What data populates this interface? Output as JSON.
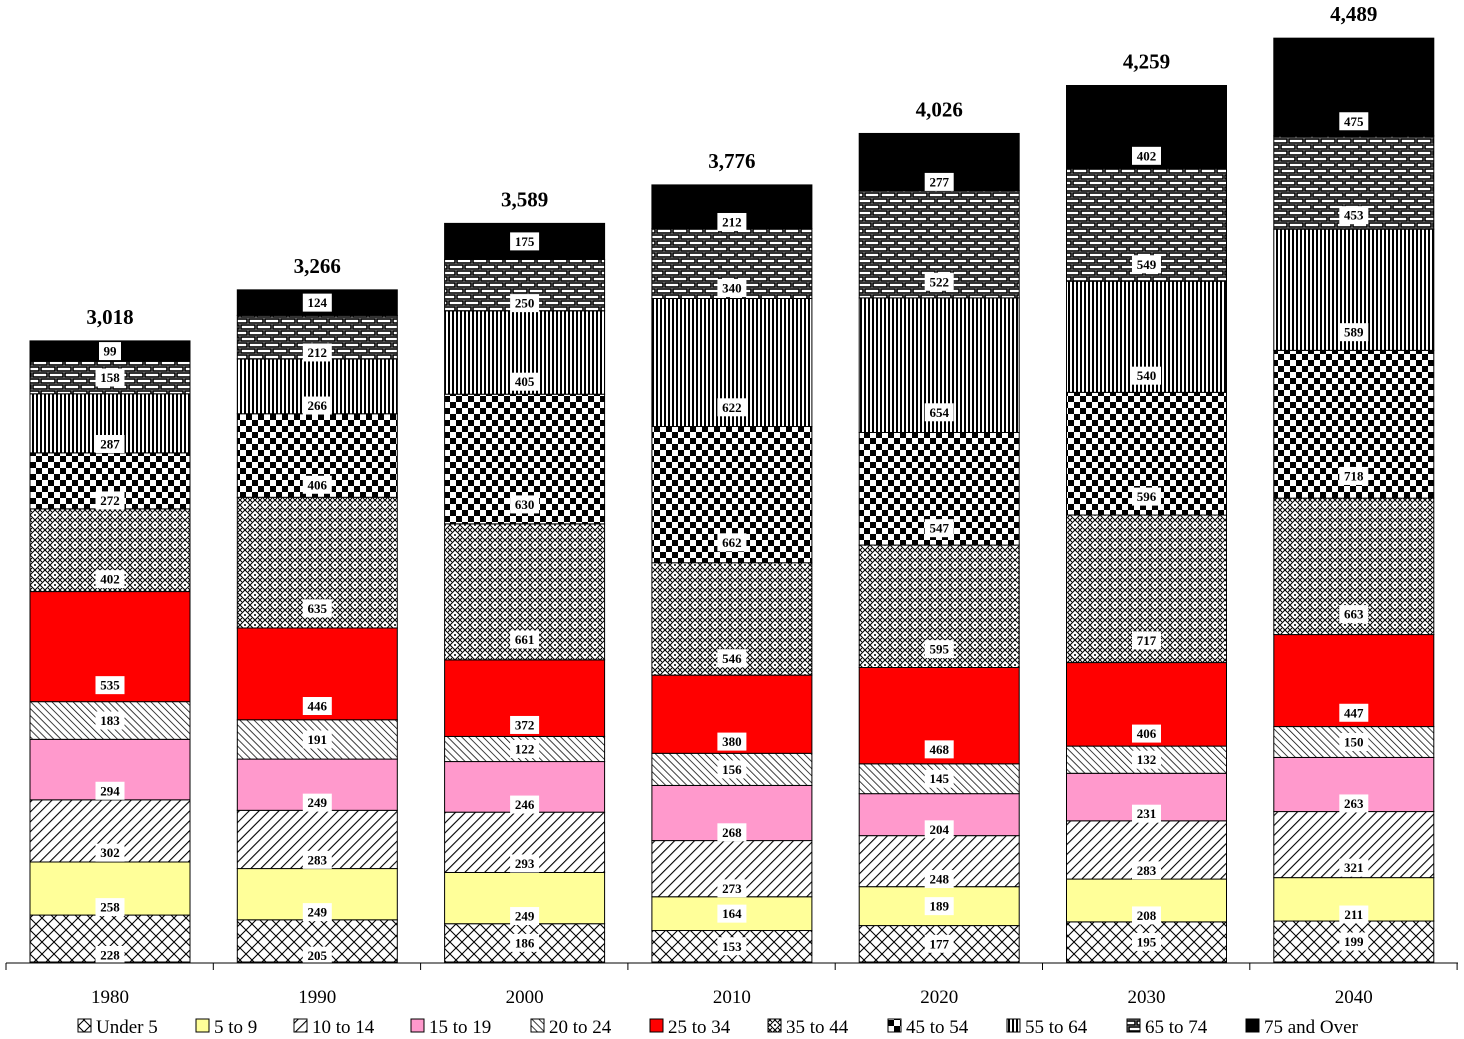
{
  "chart_data": {
    "type": "bar",
    "stacked": true,
    "title": "",
    "xlabel": "",
    "ylabel": "",
    "ylim": [
      0,
      4600
    ],
    "grid": false,
    "legend_position": "bottom",
    "categories": [
      "1980",
      "1990",
      "2000",
      "2010",
      "2020",
      "2030",
      "2040"
    ],
    "totals": [
      "3,018",
      "3,266",
      "3,589",
      "3,776",
      "4,026",
      "4,259",
      "4,489"
    ],
    "series": [
      {
        "name": "Under 5",
        "pattern": "diamond-lattice",
        "color": "#ffffff",
        "values": [
          228,
          205,
          186,
          153,
          177,
          195,
          199
        ]
      },
      {
        "name": "5 to 9",
        "pattern": "solid",
        "color": "#ffff99",
        "values": [
          258,
          249,
          249,
          164,
          189,
          208,
          211
        ]
      },
      {
        "name": "10 to 14",
        "pattern": "diagonal-stripes",
        "color": "#ffffff",
        "values": [
          302,
          283,
          293,
          273,
          248,
          283,
          321
        ]
      },
      {
        "name": "15 to 19",
        "pattern": "solid",
        "color": "#ff99cc",
        "values": [
          294,
          249,
          246,
          268,
          204,
          231,
          263
        ]
      },
      {
        "name": "20 to 24",
        "pattern": "fine-diagonal",
        "color": "#ffffff",
        "values": [
          183,
          191,
          122,
          156,
          145,
          132,
          150
        ]
      },
      {
        "name": "25 to 34",
        "pattern": "solid",
        "color": "#ff0000",
        "values": [
          535,
          446,
          372,
          380,
          468,
          406,
          447
        ]
      },
      {
        "name": "35 to 44",
        "pattern": "weave",
        "color": "#ffffff",
        "values": [
          402,
          635,
          661,
          546,
          595,
          717,
          663
        ]
      },
      {
        "name": "45 to 54",
        "pattern": "checkerboard",
        "color": "#ffffff",
        "values": [
          272,
          406,
          630,
          662,
          547,
          596,
          718
        ]
      },
      {
        "name": "55 to 64",
        "pattern": "vertical-stripes",
        "color": "#ffffff",
        "values": [
          287,
          266,
          405,
          622,
          654,
          540,
          589
        ]
      },
      {
        "name": "65 to 74",
        "pattern": "brick",
        "color": "#ffffff",
        "values": [
          158,
          212,
          250,
          340,
          522,
          549,
          453
        ]
      },
      {
        "name": "75 and Over",
        "pattern": "solid",
        "color": "#000000",
        "values": [
          99,
          124,
          175,
          212,
          277,
          402,
          475
        ]
      }
    ]
  }
}
